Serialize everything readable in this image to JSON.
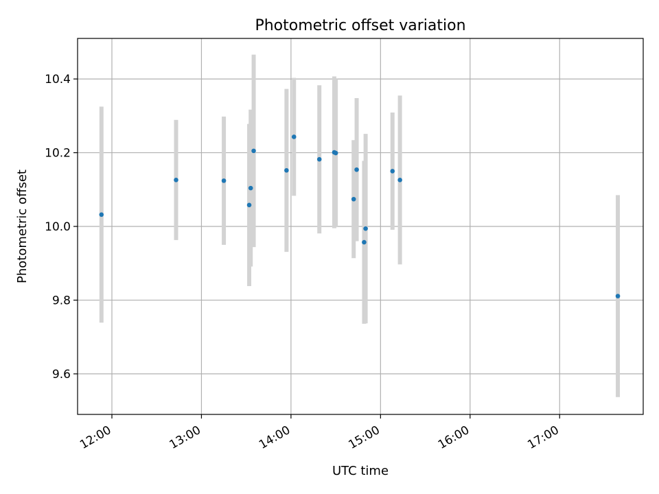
{
  "chart_data": {
    "type": "scatter",
    "title": "Photometric offset variation",
    "xlabel": "UTC time",
    "ylabel": "Photometric offset",
    "x_ticks": [
      "12:00",
      "13:00",
      "14:00",
      "15:00",
      "16:00",
      "17:00"
    ],
    "y_ticks": [
      "9.6",
      "9.8",
      "10.0",
      "10.2",
      "10.4"
    ],
    "xlim": [
      "11:37",
      "17:56"
    ],
    "ylim": [
      9.49,
      10.51
    ],
    "grid": true,
    "marker_color": "#1f77b4",
    "errorbar_color": "#d3d3d3",
    "points": [
      {
        "time": "11:53",
        "y": 10.032,
        "err": 0.293
      },
      {
        "time": "12:43",
        "y": 10.126,
        "err": 0.163
      },
      {
        "time": "13:15",
        "y": 10.124,
        "err": 0.174
      },
      {
        "time": "13:32",
        "y": 10.058,
        "err": 0.22
      },
      {
        "time": "13:33",
        "y": 10.104,
        "err": 0.213
      },
      {
        "time": "13:35",
        "y": 10.205,
        "err": 0.261
      },
      {
        "time": "13:57",
        "y": 10.152,
        "err": 0.221
      },
      {
        "time": "14:02",
        "y": 10.243,
        "err": 0.16
      },
      {
        "time": "14:19",
        "y": 10.182,
        "err": 0.201
      },
      {
        "time": "14:29",
        "y": 10.201,
        "err": 0.206
      },
      {
        "time": "14:30",
        "y": 10.199,
        "err": 0.201
      },
      {
        "time": "14:42",
        "y": 10.074,
        "err": 0.16
      },
      {
        "time": "14:44",
        "y": 10.154,
        "err": 0.194
      },
      {
        "time": "14:49",
        "y": 9.957,
        "err": 0.221
      },
      {
        "time": "14:50",
        "y": 9.994,
        "err": 0.257
      },
      {
        "time": "15:08",
        "y": 10.15,
        "err": 0.159
      },
      {
        "time": "15:13",
        "y": 10.126,
        "err": 0.229
      },
      {
        "time": "17:39",
        "y": 9.811,
        "err": 0.274
      }
    ]
  }
}
